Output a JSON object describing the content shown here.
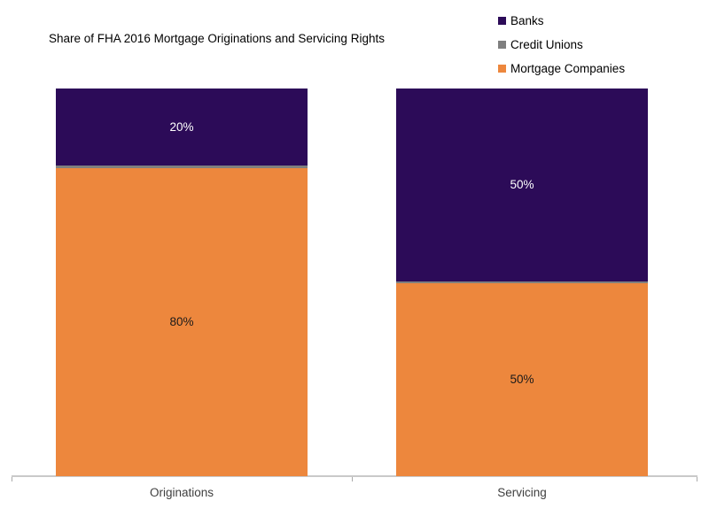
{
  "chart_data": {
    "type": "bar",
    "stacked": true,
    "orientation": "vertical",
    "title": "Share of FHA 2016 Mortgage Originations and Servicing Rights",
    "categories": [
      "Originations",
      "Servicing"
    ],
    "series": [
      {
        "name": "Banks",
        "color": "#2C0B58",
        "values": [
          20,
          50
        ],
        "labels": [
          "20%",
          "50%"
        ],
        "label_color": "#FFFFFF"
      },
      {
        "name": "Credit Unions",
        "color": "#7F7F7F",
        "values": [
          0.7,
          0.4
        ],
        "labels": [
          "",
          ""
        ],
        "label_color": "#1A1A1A"
      },
      {
        "name": "Mortgage Companies",
        "color": "#ED873D",
        "values": [
          80,
          50
        ],
        "labels": [
          "80%",
          "50%"
        ],
        "label_color": "#1A1A1A"
      }
    ],
    "ylim": [
      0,
      100
    ],
    "grid": false,
    "legend_position": "top-right",
    "axis_line_color": "#C9C9C9",
    "background": "#FFFFFF"
  }
}
